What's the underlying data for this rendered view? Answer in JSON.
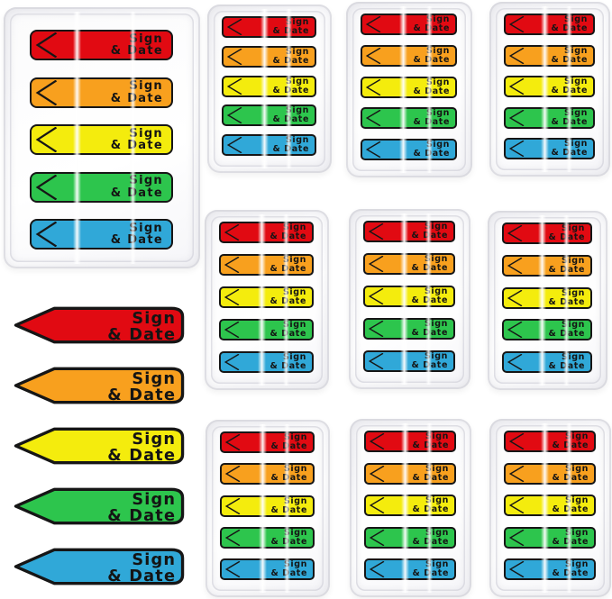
{
  "scene": {
    "type": "product-photo",
    "background": "#ffffff",
    "outline": "#161616"
  },
  "label": {
    "line1": "Sign",
    "line2": "& Date"
  },
  "colors": [
    {
      "name": "red",
      "hex": "#e10a12"
    },
    {
      "name": "orange",
      "hex": "#f8a01e"
    },
    {
      "name": "yellow",
      "hex": "#f4ec0d"
    },
    {
      "name": "green",
      "hex": "#2dc54d"
    },
    {
      "name": "blue",
      "hex": "#30a8d8"
    }
  ],
  "packs": {
    "count": 10,
    "large_count": 1,
    "small_count": 9,
    "flags_per_pack": 5
  },
  "loose_flags": {
    "count": 5
  }
}
